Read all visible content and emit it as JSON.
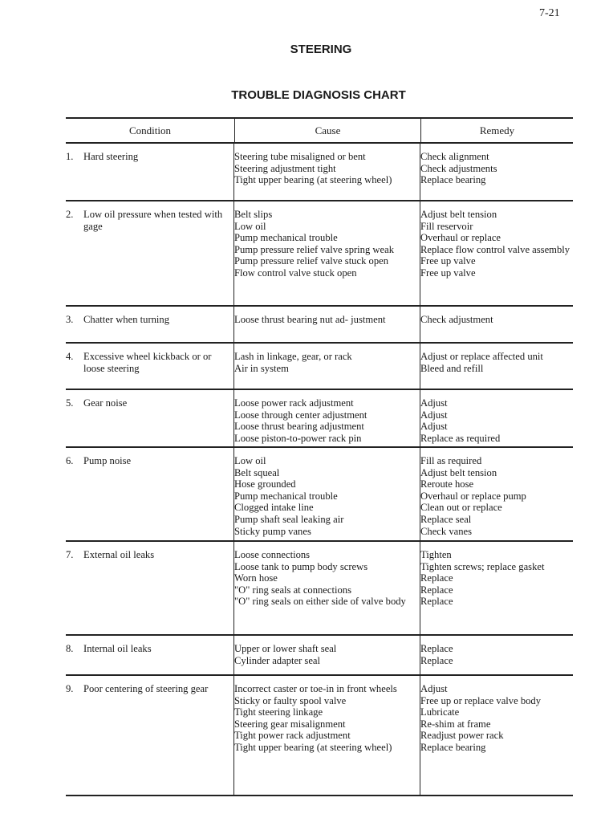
{
  "page_number": "7-21",
  "section_title": "STEERING",
  "chart_title": "TROUBLE DIAGNOSIS CHART",
  "headers": {
    "condition": "Condition",
    "cause": "Cause",
    "remedy": "Remedy"
  },
  "rows": [
    {
      "num": "1.",
      "condition": "Hard steering",
      "pairs": [
        {
          "cause": "Steering tube misaligned or bent",
          "remedy": "Check alignment"
        },
        {
          "cause": "Steering adjustment tight",
          "remedy": "Check adjustments"
        },
        {
          "cause": "Tight upper bearing (at steering wheel)",
          "remedy": "Replace bearing"
        }
      ]
    },
    {
      "num": "2.",
      "condition": "Low oil pressure when tested with gage",
      "pairs": [
        {
          "cause": "Belt slips",
          "remedy": "Adjust belt tension"
        },
        {
          "cause": "Low oil",
          "remedy": "Fill reservoir"
        },
        {
          "cause": "Pump mechanical trouble",
          "remedy": "Overhaul or replace"
        },
        {
          "cause": "Pump pressure relief valve spring weak",
          "remedy": "Replace flow control valve assembly"
        },
        {
          "cause": "Pump pressure relief valve stuck open",
          "remedy": "Free up valve"
        },
        {
          "cause": "Flow control valve stuck open",
          "remedy": "Free up valve"
        }
      ]
    },
    {
      "num": "3.",
      "condition": "Chatter when turning",
      "pairs": [
        {
          "cause": "Loose thrust bearing nut ad- justment",
          "remedy": "Check adjustment"
        }
      ]
    },
    {
      "num": "4.",
      "condition": "Excessive wheel kickback or or loose steering",
      "pairs": [
        {
          "cause": "Lash in linkage, gear, or rack",
          "remedy": "Adjust or replace affected unit"
        },
        {
          "cause": "Air in system",
          "remedy": "Bleed and refill"
        }
      ]
    },
    {
      "num": "5.",
      "condition": "Gear noise",
      "pairs": [
        {
          "cause": "Loose power rack adjustment",
          "remedy": "Adjust"
        },
        {
          "cause": "Loose through center adjustment",
          "remedy": "Adjust"
        },
        {
          "cause": "Loose thrust bearing adjustment",
          "remedy": "Adjust"
        },
        {
          "cause": "Loose piston-to-power rack pin",
          "remedy": "Replace as required"
        }
      ]
    },
    {
      "num": "6.",
      "condition": "Pump noise",
      "pairs": [
        {
          "cause": "Low oil",
          "remedy": "Fill as required"
        },
        {
          "cause": "Belt squeal",
          "remedy": "Adjust belt tension"
        },
        {
          "cause": "Hose grounded",
          "remedy": "Reroute hose"
        },
        {
          "cause": "Pump mechanical trouble",
          "remedy": "Overhaul or replace pump"
        },
        {
          "cause": "Clogged intake line",
          "remedy": "Clean out or replace"
        },
        {
          "cause": "Pump shaft seal leaking air",
          "remedy": "Replace seal"
        },
        {
          "cause": "Sticky pump vanes",
          "remedy": "Check vanes"
        }
      ]
    },
    {
      "num": "7.",
      "condition": "External oil leaks",
      "pairs": [
        {
          "cause": "Loose connections",
          "remedy": "Tighten"
        },
        {
          "cause": "Loose tank to pump body screws",
          "remedy": "Tighten screws; replace gasket"
        },
        {
          "cause": "Worn hose",
          "remedy": "Replace"
        },
        {
          "cause": "\"O\" ring seals at connections",
          "remedy": "Replace"
        },
        {
          "cause": "\"O\" ring seals on either side of valve body",
          "remedy": "Replace"
        }
      ]
    },
    {
      "num": "8.",
      "condition": "Internal oil leaks",
      "pairs": [
        {
          "cause": "Upper or lower shaft seal",
          "remedy": "Replace"
        },
        {
          "cause": "Cylinder adapter seal",
          "remedy": "Replace"
        }
      ]
    },
    {
      "num": "9.",
      "condition": "Poor centering of steering gear",
      "pairs": [
        {
          "cause": "Incorrect caster or toe-in in front wheels",
          "remedy": "Adjust"
        },
        {
          "cause": "Sticky or faulty spool valve",
          "remedy": "Free up or replace valve body"
        },
        {
          "cause": "Tight steering linkage",
          "remedy": "Lubricate"
        },
        {
          "cause": "Steering gear misalignment",
          "remedy": "Re-shim at frame"
        },
        {
          "cause": "Tight power rack adjustment",
          "remedy": "Readjust power rack"
        },
        {
          "cause": "Tight upper bearing (at steering wheel)",
          "remedy": "Replace bearing"
        }
      ]
    }
  ]
}
